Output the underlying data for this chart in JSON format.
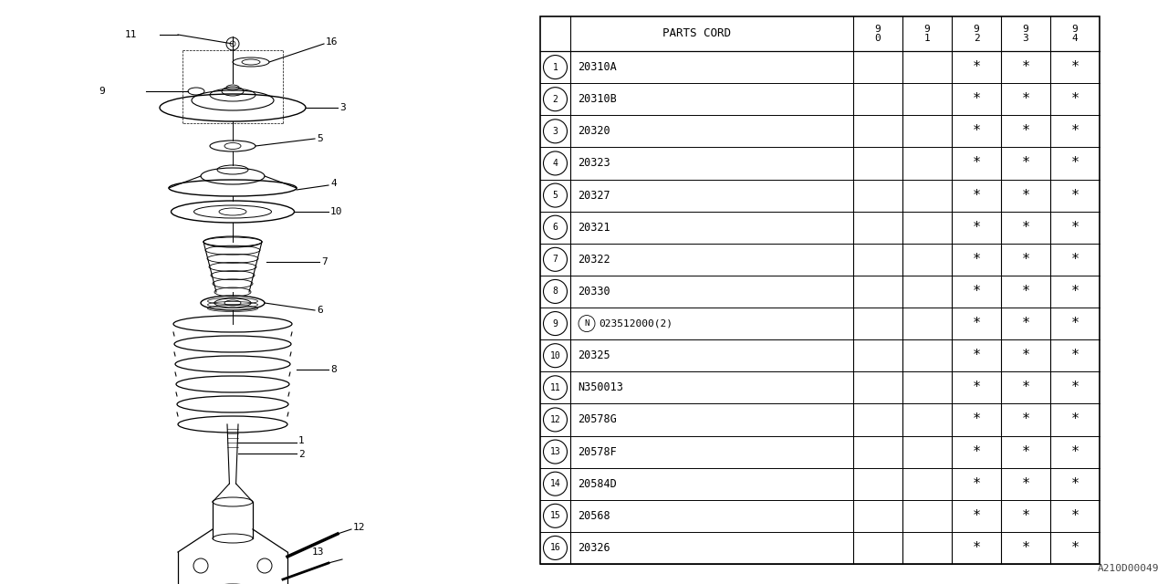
{
  "bg_color": "#ffffff",
  "line_color": "#000000",
  "rows": [
    {
      "num": "1",
      "code": "20310A",
      "marks": [
        false,
        false,
        true,
        true,
        true
      ]
    },
    {
      "num": "2",
      "code": "20310B",
      "marks": [
        false,
        false,
        true,
        true,
        true
      ]
    },
    {
      "num": "3",
      "code": "20320",
      "marks": [
        false,
        false,
        true,
        true,
        true
      ]
    },
    {
      "num": "4",
      "code": "20323",
      "marks": [
        false,
        false,
        true,
        true,
        true
      ]
    },
    {
      "num": "5",
      "code": "20327",
      "marks": [
        false,
        false,
        true,
        true,
        true
      ]
    },
    {
      "num": "6",
      "code": "20321",
      "marks": [
        false,
        false,
        true,
        true,
        true
      ]
    },
    {
      "num": "7",
      "code": "20322",
      "marks": [
        false,
        false,
        true,
        true,
        true
      ]
    },
    {
      "num": "8",
      "code": "20330",
      "marks": [
        false,
        false,
        true,
        true,
        true
      ]
    },
    {
      "num": "9",
      "code": "N023512000(2)",
      "marks": [
        false,
        false,
        true,
        true,
        true
      ]
    },
    {
      "num": "10",
      "code": "20325",
      "marks": [
        false,
        false,
        true,
        true,
        true
      ]
    },
    {
      "num": "11",
      "code": "N350013",
      "marks": [
        false,
        false,
        true,
        true,
        true
      ]
    },
    {
      "num": "12",
      "code": "20578G",
      "marks": [
        false,
        false,
        true,
        true,
        true
      ]
    },
    {
      "num": "13",
      "code": "20578F",
      "marks": [
        false,
        false,
        true,
        true,
        true
      ]
    },
    {
      "num": "14",
      "code": "20584D",
      "marks": [
        false,
        false,
        true,
        true,
        true
      ]
    },
    {
      "num": "15",
      "code": "20568",
      "marks": [
        false,
        false,
        true,
        true,
        true
      ]
    },
    {
      "num": "16",
      "code": "20326",
      "marks": [
        false,
        false,
        true,
        true,
        true
      ]
    }
  ],
  "watermark": "A210D00049",
  "year_headers": [
    "9\n0",
    "9\n1",
    "9\n2",
    "9\n3",
    "9\n4"
  ]
}
